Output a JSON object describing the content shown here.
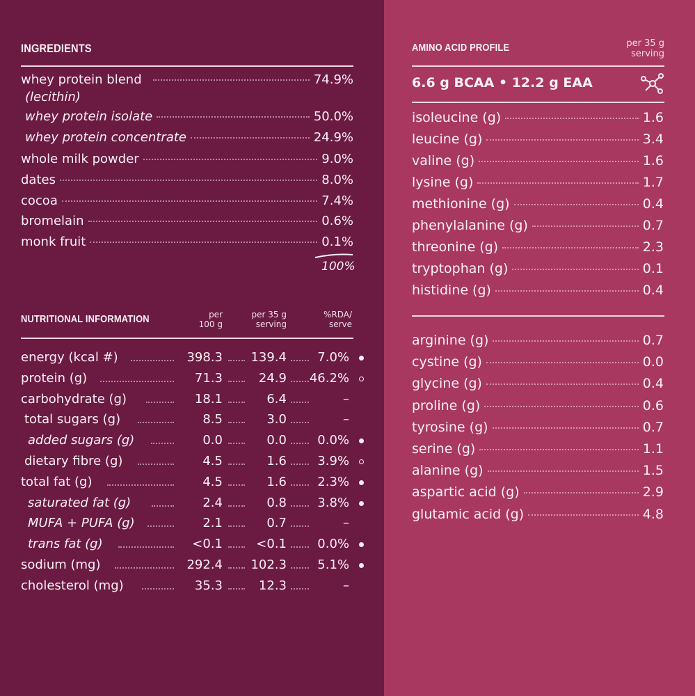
{
  "ingredients": {
    "title": "INGREDIENTS",
    "items": [
      {
        "label": "whey protein blend",
        "value": "74.9%"
      },
      {
        "label": "whey protein isolate",
        "value": "50.0%"
      },
      {
        "label": "whey protein concentrate",
        "value": "24.9%"
      },
      {
        "label": "whole milk powder",
        "value": "9.0%"
      },
      {
        "label": "dates",
        "value": "8.0%"
      },
      {
        "label": "cocoa",
        "value": "7.4%"
      },
      {
        "label": "bromelain",
        "value": "0.6%"
      },
      {
        "label": "monk fruit",
        "value": "0.1%"
      }
    ],
    "sub_note": "(lecithin)",
    "total": "100%"
  },
  "nutrition": {
    "title": "NUTRITIONAL INFORMATION",
    "col_per100": "per\n100 g",
    "col_serving": "per 35 g\nserving",
    "col_rda": "%RDA/\nserve",
    "rows": [
      {
        "label": "energy (kcal #)",
        "per100": "398.3",
        "serving": "139.4",
        "rda": "7.0%",
        "mark": "filled"
      },
      {
        "label": "protein (g)",
        "per100": "71.3",
        "serving": "24.9",
        "rda": "46.2%",
        "mark": "hollow"
      },
      {
        "label": "carbohydrate (g)",
        "per100": "18.1",
        "serving": "6.4",
        "rda": "–",
        "mark": ""
      },
      {
        "label": "total sugars (g)",
        "per100": "8.5",
        "serving": "3.0",
        "rda": "–",
        "mark": ""
      },
      {
        "label": "added sugars (g)",
        "per100": "0.0",
        "serving": "0.0",
        "rda": "0.0%",
        "mark": "filled"
      },
      {
        "label": "dietary fibre (g)",
        "per100": "4.5",
        "serving": "1.6",
        "rda": "3.9%",
        "mark": "hollow"
      },
      {
        "label": "total fat (g)",
        "per100": "4.5",
        "serving": "1.6",
        "rda": "2.3%",
        "mark": "filled"
      },
      {
        "label": "saturated fat (g)",
        "per100": "2.4",
        "serving": "0.8",
        "rda": "3.8%",
        "mark": "filled"
      },
      {
        "label": "MUFA + PUFA (g)",
        "per100": "2.1",
        "serving": "0.7",
        "rda": "–",
        "mark": ""
      },
      {
        "label": "trans fat (g)",
        "per100": "<0.1",
        "serving": "<0.1",
        "rda": "0.0%",
        "mark": "filled"
      },
      {
        "label": "sodium (mg)",
        "per100": "292.4",
        "serving": "102.3",
        "rda": "5.1%",
        "mark": "filled"
      },
      {
        "label": "cholesterol (mg)",
        "per100": "35.3",
        "serving": "12.3",
        "rda": "–",
        "mark": ""
      }
    ]
  },
  "amino": {
    "title": "AMINO ACID PROFILE",
    "serving_note": "per 35 g\nserving",
    "summary": "6.6 g BCAA  •  12.2 g EAA",
    "essential": [
      {
        "label": "isoleucine (g)",
        "value": "1.6"
      },
      {
        "label": "leucine (g)",
        "value": "3.4"
      },
      {
        "label": "valine (g)",
        "value": "1.6"
      },
      {
        "label": "lysine (g)",
        "value": "1.7"
      },
      {
        "label": "methionine (g)",
        "value": "0.4"
      },
      {
        "label": "phenylalanine (g)",
        "value": "0.7"
      },
      {
        "label": "threonine (g)",
        "value": "2.3"
      },
      {
        "label": "tryptophan (g)",
        "value": "0.1"
      },
      {
        "label": "histidine (g)",
        "value": "0.4"
      }
    ],
    "nonessential": [
      {
        "label": "arginine (g)",
        "value": "0.7"
      },
      {
        "label": "cystine (g)",
        "value": "0.0"
      },
      {
        "label": "glycine (g)",
        "value": "0.4"
      },
      {
        "label": "proline (g)",
        "value": "0.6"
      },
      {
        "label": "tyrosine (g)",
        "value": "0.7"
      },
      {
        "label": "serine (g)",
        "value": "1.1"
      },
      {
        "label": "alanine (g)",
        "value": "1.5"
      },
      {
        "label": "aspartic acid (g)",
        "value": "2.9"
      },
      {
        "label": "glutamic acid (g)",
        "value": "4.8"
      }
    ]
  },
  "colors": {
    "left_panel": "#6b1b42",
    "right_panel": "#a83860",
    "text": "#fbeff3"
  },
  "icons": {
    "molecule": "molecule-icon"
  }
}
